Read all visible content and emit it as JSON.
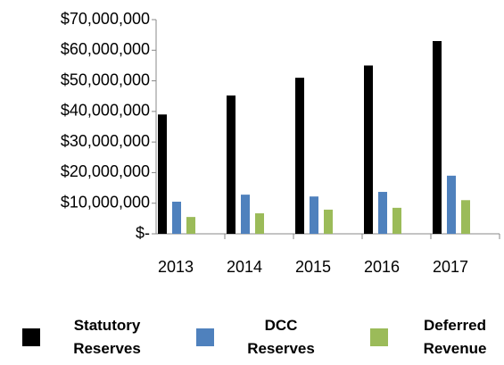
{
  "chart_data": {
    "type": "bar",
    "categories": [
      "2013",
      "2014",
      "2015",
      "2016",
      "2017"
    ],
    "series": [
      {
        "name": "Statutory Reserves",
        "color": "#000000",
        "values": [
          39000000,
          45200000,
          51000000,
          55000000,
          63000000
        ]
      },
      {
        "name": "DCC Reserves",
        "color": "#4f81bd",
        "values": [
          10500000,
          12800000,
          12200000,
          13700000,
          19000000
        ]
      },
      {
        "name": "Deferred Revenue",
        "color": "#9bbb59",
        "values": [
          5500000,
          6700000,
          7900000,
          8500000,
          11000000
        ]
      }
    ],
    "ylim": [
      0,
      70000000
    ],
    "yticks": [
      {
        "value": 0,
        "label": "$-"
      },
      {
        "value": 10000000,
        "label": "$10,000,000"
      },
      {
        "value": 20000000,
        "label": "$20,000,000"
      },
      {
        "value": 30000000,
        "label": "$30,000,000"
      },
      {
        "value": 40000000,
        "label": "$40,000,000"
      },
      {
        "value": 50000000,
        "label": "$50,000,000"
      },
      {
        "value": 60000000,
        "label": "$60,000,000"
      },
      {
        "value": 70000000,
        "label": "$70,000,000"
      }
    ],
    "legend": "bottom"
  }
}
